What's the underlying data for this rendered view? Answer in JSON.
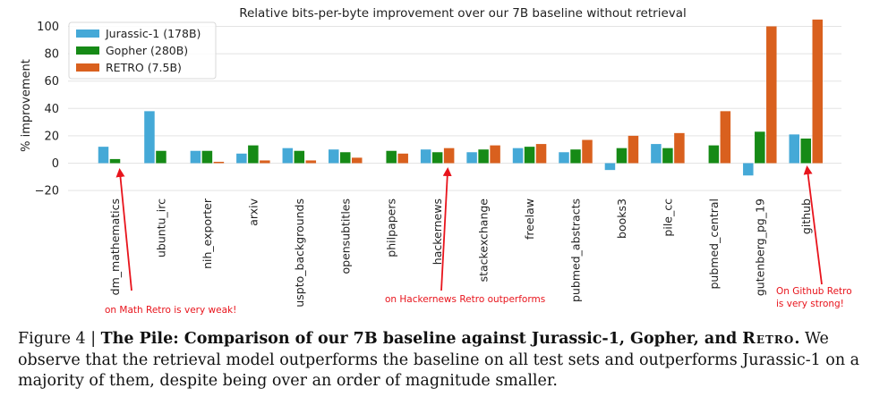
{
  "chart_data": {
    "type": "bar",
    "title": "Relative bits-per-byte improvement over our 7B baseline without retrieval",
    "xlabel": "",
    "ylabel": "% improvement",
    "ylim": [
      -20,
      105
    ],
    "yticks": [
      100,
      80,
      60,
      40,
      20,
      0,
      -20
    ],
    "grid": "horizontal",
    "legend_position": "top-left",
    "categories": [
      "dm_mathematics",
      "ubuntu_irc",
      "nih_exporter",
      "arxiv",
      "uspto_backgrounds",
      "opensubtitles",
      "philpapers",
      "hackernews",
      "stackexchange",
      "freelaw",
      "pubmed_abstracts",
      "books3",
      "pile_cc",
      "pubmed_central",
      "gutenberg_pg_19",
      "github"
    ],
    "series": [
      {
        "name": "Jurassic-1 (178B)",
        "color": "#45a9d7",
        "values": [
          12,
          38,
          9,
          7,
          11,
          10,
          0,
          10,
          8,
          11,
          8,
          -5,
          14,
          0,
          -9,
          21
        ]
      },
      {
        "name": "Gopher (280B)",
        "color": "#168a16",
        "values": [
          3,
          9,
          9,
          13,
          9,
          8,
          9,
          8,
          10,
          12,
          10,
          11,
          11,
          13,
          23,
          18
        ]
      },
      {
        "name": "RETRO (7.5B)",
        "color": "#d9601e",
        "values": [
          0,
          0,
          1,
          2,
          2,
          4,
          7,
          11,
          13,
          14,
          17,
          20,
          22,
          38,
          100,
          105
        ]
      }
    ],
    "annotations": [
      {
        "text": "on Math Retro is very weak!",
        "target": "dm_mathematics"
      },
      {
        "text": "on Hackernews Retro outperforms",
        "target": "hackernews"
      },
      {
        "text": "On Github Retro is very strong!",
        "lines": [
          "On Github Retro",
          "is very strong!"
        ],
        "target": "github"
      }
    ]
  },
  "caption": {
    "figure_label": "Figure 4 | ",
    "bold_title": "The Pile: Comparison of our 7B baseline against Jurassic-1, Gopher, and ",
    "bold_retro": "Retro",
    "bold_end": ".",
    "body": " We observe that the retrieval model outperforms the baseline on all test sets and outperforms Jurassic-1 on a majority of them, despite being over an order of magnitude smaller."
  }
}
